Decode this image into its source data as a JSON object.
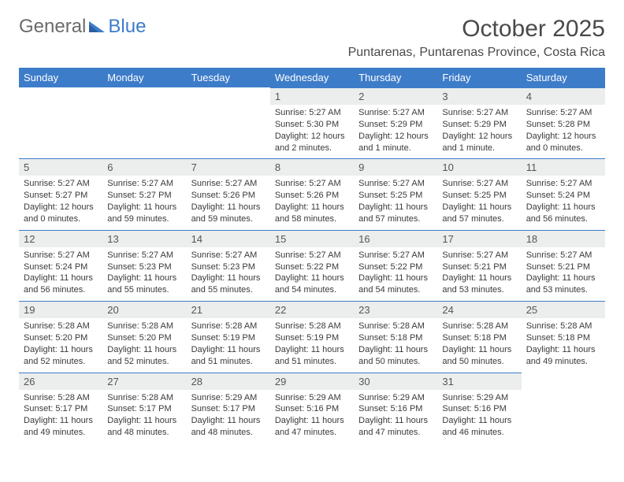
{
  "brand": {
    "part1": "General",
    "part2": "Blue"
  },
  "title": "October 2025",
  "location": "Puntarenas, Puntarenas Province, Costa Rica",
  "colors": {
    "header_bg": "#3d7cc9",
    "header_text": "#ffffff",
    "daynum_bg": "#eceded",
    "row_divider": "#3d7cc9",
    "text": "#3a3a3a",
    "page_bg": "#ffffff"
  },
  "typography": {
    "title_fontsize": 30,
    "location_fontsize": 16,
    "weekday_fontsize": 13,
    "cell_fontsize": 11
  },
  "layout": {
    "columns": 7,
    "rows": 5,
    "first_weekday_index": 3
  },
  "weekdays": [
    "Sunday",
    "Monday",
    "Tuesday",
    "Wednesday",
    "Thursday",
    "Friday",
    "Saturday"
  ],
  "days": [
    {
      "n": 1,
      "sunrise": "5:27 AM",
      "sunset": "5:30 PM",
      "daylight": "12 hours and 2 minutes."
    },
    {
      "n": 2,
      "sunrise": "5:27 AM",
      "sunset": "5:29 PM",
      "daylight": "12 hours and 1 minute."
    },
    {
      "n": 3,
      "sunrise": "5:27 AM",
      "sunset": "5:29 PM",
      "daylight": "12 hours and 1 minute."
    },
    {
      "n": 4,
      "sunrise": "5:27 AM",
      "sunset": "5:28 PM",
      "daylight": "12 hours and 0 minutes."
    },
    {
      "n": 5,
      "sunrise": "5:27 AM",
      "sunset": "5:27 PM",
      "daylight": "12 hours and 0 minutes."
    },
    {
      "n": 6,
      "sunrise": "5:27 AM",
      "sunset": "5:27 PM",
      "daylight": "11 hours and 59 minutes."
    },
    {
      "n": 7,
      "sunrise": "5:27 AM",
      "sunset": "5:26 PM",
      "daylight": "11 hours and 59 minutes."
    },
    {
      "n": 8,
      "sunrise": "5:27 AM",
      "sunset": "5:26 PM",
      "daylight": "11 hours and 58 minutes."
    },
    {
      "n": 9,
      "sunrise": "5:27 AM",
      "sunset": "5:25 PM",
      "daylight": "11 hours and 57 minutes."
    },
    {
      "n": 10,
      "sunrise": "5:27 AM",
      "sunset": "5:25 PM",
      "daylight": "11 hours and 57 minutes."
    },
    {
      "n": 11,
      "sunrise": "5:27 AM",
      "sunset": "5:24 PM",
      "daylight": "11 hours and 56 minutes."
    },
    {
      "n": 12,
      "sunrise": "5:27 AM",
      "sunset": "5:24 PM",
      "daylight": "11 hours and 56 minutes."
    },
    {
      "n": 13,
      "sunrise": "5:27 AM",
      "sunset": "5:23 PM",
      "daylight": "11 hours and 55 minutes."
    },
    {
      "n": 14,
      "sunrise": "5:27 AM",
      "sunset": "5:23 PM",
      "daylight": "11 hours and 55 minutes."
    },
    {
      "n": 15,
      "sunrise": "5:27 AM",
      "sunset": "5:22 PM",
      "daylight": "11 hours and 54 minutes."
    },
    {
      "n": 16,
      "sunrise": "5:27 AM",
      "sunset": "5:22 PM",
      "daylight": "11 hours and 54 minutes."
    },
    {
      "n": 17,
      "sunrise": "5:27 AM",
      "sunset": "5:21 PM",
      "daylight": "11 hours and 53 minutes."
    },
    {
      "n": 18,
      "sunrise": "5:27 AM",
      "sunset": "5:21 PM",
      "daylight": "11 hours and 53 minutes."
    },
    {
      "n": 19,
      "sunrise": "5:28 AM",
      "sunset": "5:20 PM",
      "daylight": "11 hours and 52 minutes."
    },
    {
      "n": 20,
      "sunrise": "5:28 AM",
      "sunset": "5:20 PM",
      "daylight": "11 hours and 52 minutes."
    },
    {
      "n": 21,
      "sunrise": "5:28 AM",
      "sunset": "5:19 PM",
      "daylight": "11 hours and 51 minutes."
    },
    {
      "n": 22,
      "sunrise": "5:28 AM",
      "sunset": "5:19 PM",
      "daylight": "11 hours and 51 minutes."
    },
    {
      "n": 23,
      "sunrise": "5:28 AM",
      "sunset": "5:18 PM",
      "daylight": "11 hours and 50 minutes."
    },
    {
      "n": 24,
      "sunrise": "5:28 AM",
      "sunset": "5:18 PM",
      "daylight": "11 hours and 50 minutes."
    },
    {
      "n": 25,
      "sunrise": "5:28 AM",
      "sunset": "5:18 PM",
      "daylight": "11 hours and 49 minutes."
    },
    {
      "n": 26,
      "sunrise": "5:28 AM",
      "sunset": "5:17 PM",
      "daylight": "11 hours and 49 minutes."
    },
    {
      "n": 27,
      "sunrise": "5:28 AM",
      "sunset": "5:17 PM",
      "daylight": "11 hours and 48 minutes."
    },
    {
      "n": 28,
      "sunrise": "5:29 AM",
      "sunset": "5:17 PM",
      "daylight": "11 hours and 48 minutes."
    },
    {
      "n": 29,
      "sunrise": "5:29 AM",
      "sunset": "5:16 PM",
      "daylight": "11 hours and 47 minutes."
    },
    {
      "n": 30,
      "sunrise": "5:29 AM",
      "sunset": "5:16 PM",
      "daylight": "11 hours and 47 minutes."
    },
    {
      "n": 31,
      "sunrise": "5:29 AM",
      "sunset": "5:16 PM",
      "daylight": "11 hours and 46 minutes."
    }
  ],
  "labels": {
    "sunrise": "Sunrise:",
    "sunset": "Sunset:",
    "daylight": "Daylight:"
  }
}
